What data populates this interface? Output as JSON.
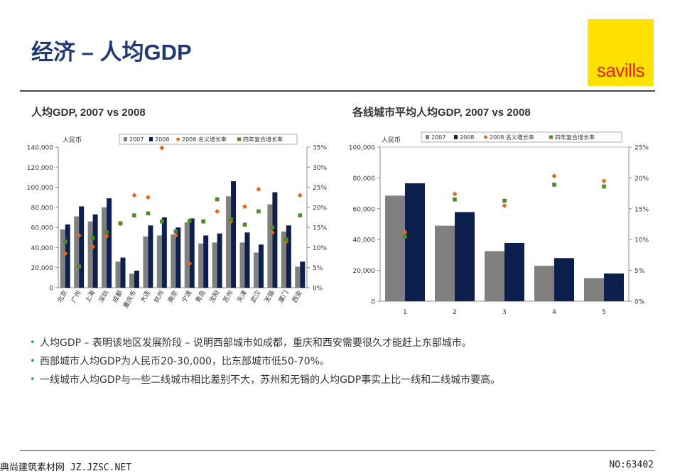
{
  "slide": {
    "title": "经济 – 人均GDP",
    "logo_text": "savills",
    "colors": {
      "title": "#1f3a73",
      "bar_2007": "#808080",
      "bar_2008": "#0d1f4d",
      "nominal_growth": "#e2681e",
      "cagr": "#4e8a2a",
      "logo_bg": "#ffe100",
      "logo_text": "#e3241b"
    }
  },
  "bullets": [
    "人均GDP – 表明该地区发展阶段 – 说明西部城市如成都，重庆和西安需要很久才能赶上东部城市。",
    "西部城市人均GDP为人民币20-30,000，比东部城市低50-70%。",
    "一线城市人均GDP与一些二线城市相比差别不大，苏州和无锡的人均GDP事实上比一线和二线城市要高。"
  ],
  "footer": {
    "left": "典尚建筑素材网 JZ.JZSC.NET",
    "right": "NO:63402"
  },
  "chart_data": [
    {
      "type": "bar",
      "title": "人均GDP, 2007 vs 2008",
      "ylabel": "人民币",
      "ylim": [
        0,
        140000
      ],
      "yticks": [
        "0",
        "20,000",
        "40,000",
        "60,000",
        "80,000",
        "100,000",
        "120,000",
        "140,000"
      ],
      "y2lim": [
        0,
        35
      ],
      "y2ticks": [
        "0%",
        "5%",
        "10%",
        "15%",
        "20%",
        "25%",
        "30%",
        "35%"
      ],
      "categories": [
        "北京",
        "广州",
        "上海",
        "深圳",
        "成都",
        "重庆市",
        "大连",
        "杭州",
        "南京",
        "宁波",
        "青岛",
        "沈阳",
        "苏州",
        "天津",
        "武汉",
        "无锡",
        "厦门",
        "西安"
      ],
      "series": [
        {
          "name": "2007",
          "kind": "bar",
          "values": [
            58000,
            71000,
            66000,
            80000,
            26000,
            14000,
            51000,
            52000,
            53000,
            65000,
            44000,
            45000,
            91000,
            45000,
            35000,
            83000,
            56000,
            21000
          ]
        },
        {
          "name": "2008",
          "kind": "bar",
          "values": [
            63000,
            81000,
            73000,
            89000,
            30000,
            17000,
            62000,
            70000,
            60000,
            69000,
            52000,
            54000,
            106000,
            55000,
            43000,
            95000,
            62000,
            26000
          ]
        },
        {
          "name": "2008 名义增长率",
          "kind": "point",
          "axis": "right",
          "values": [
            8.5,
            13,
            10.2,
            12.8,
            16,
            23,
            22.5,
            34.8,
            13,
            6,
            16.5,
            19,
            16.5,
            20.2,
            24.5,
            13.7,
            11.5,
            23
          ]
        },
        {
          "name": "四年复合增长率",
          "kind": "point",
          "axis": "right",
          "values": [
            11.5,
            5.3,
            12.4,
            13.8,
            16,
            18,
            18.5,
            16.5,
            14,
            16.6,
            16.5,
            22,
            17,
            15.7,
            19,
            15,
            12,
            18
          ]
        }
      ],
      "legend_position": "top"
    },
    {
      "type": "bar",
      "title": "各线城市平均人均GDP, 2007 vs 2008",
      "ylabel": "人民币",
      "ylim": [
        0,
        100000
      ],
      "yticks": [
        "0",
        "20,000",
        "40,000",
        "60,000",
        "80,000",
        "100,000"
      ],
      "y2lim": [
        0,
        25
      ],
      "y2ticks": [
        "0%",
        "5%",
        "10%",
        "15%",
        "20%",
        "25%"
      ],
      "categories": [
        "1",
        "2",
        "3",
        "4",
        "5"
      ],
      "series": [
        {
          "name": "2007",
          "kind": "bar",
          "values": [
            68500,
            49000,
            32500,
            23000,
            15000
          ]
        },
        {
          "name": "2008",
          "kind": "bar",
          "values": [
            76500,
            57800,
            37800,
            28000,
            18000
          ]
        },
        {
          "name": "2008 名义增长率",
          "kind": "point",
          "axis": "right",
          "values": [
            11.2,
            17.4,
            15.5,
            20.3,
            19.5
          ]
        },
        {
          "name": "四年复合增长率",
          "kind": "point",
          "axis": "right",
          "values": [
            10.5,
            16.5,
            16.3,
            18.9,
            18.6
          ]
        }
      ],
      "legend_position": "top"
    }
  ]
}
